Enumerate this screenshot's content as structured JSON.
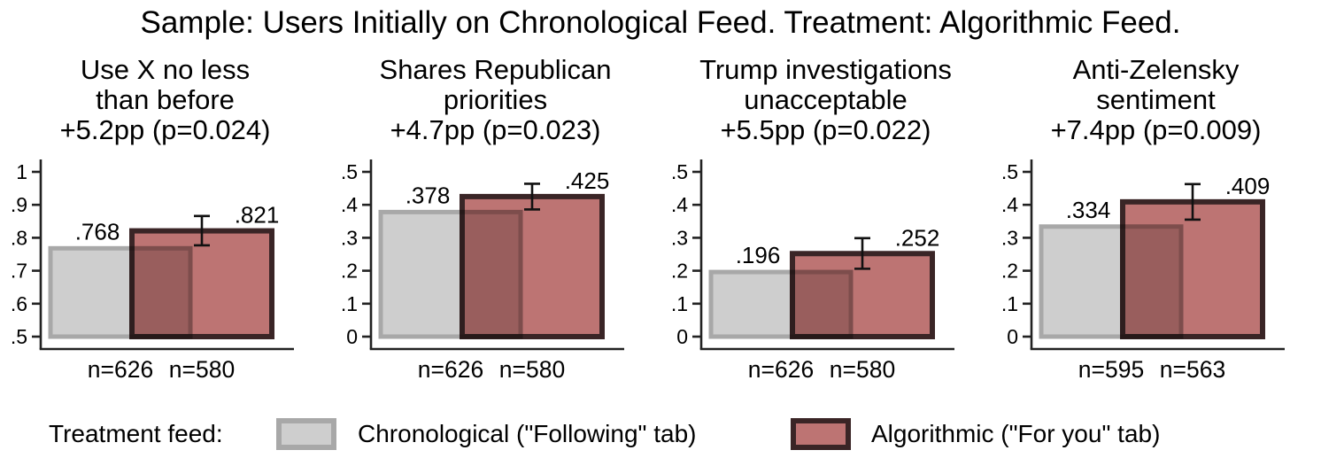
{
  "title": "Sample: Users Initially on Chronological Feed. Treatment: Algorithmic Feed.",
  "colors": {
    "background": "#ffffff",
    "axis": "#222222",
    "text": "#000000",
    "error_bar": "#111111",
    "bar_gray_fill": "#cecece",
    "bar_gray_border": "#a8a8a8",
    "bar_red_fill": "#bd7473",
    "bar_red_border": "#3a2526"
  },
  "legend": {
    "label": "Treatment feed:",
    "items": [
      {
        "name": "Chronological (\"Following\" tab)",
        "fill": "#cecece",
        "border": "#a8a8a8"
      },
      {
        "name": "Algorithmic (\"For you\" tab)",
        "fill": "#bd7473",
        "border": "#3a2526"
      }
    ]
  },
  "chart_data": [
    {
      "type": "bar",
      "title_lines": [
        "Use X no less",
        "than before",
        "+5.2pp (p=0.024)"
      ],
      "outcome": "Use X no less than before",
      "effect_pp": 5.2,
      "p_value": 0.024,
      "ylim": [
        0.5,
        1
      ],
      "yticks": [
        {
          "v": 1.0,
          "label": "1"
        },
        {
          "v": 0.9,
          "label": ".9"
        },
        {
          "v": 0.8,
          "label": ".8"
        },
        {
          "v": 0.7,
          "label": ".7"
        },
        {
          "v": 0.6,
          "label": ".6"
        },
        {
          "v": 0.5,
          "label": ".5"
        }
      ],
      "series": [
        {
          "name": "Chronological (\"Following\" tab)",
          "value": 0.768,
          "value_label": ".768",
          "n": 626,
          "n_label": "n=626"
        },
        {
          "name": "Algorithmic (\"For you\" tab)",
          "value": 0.821,
          "value_label": ".821",
          "n": 580,
          "n_label": "n=580",
          "ci": [
            0.777,
            0.866
          ]
        }
      ]
    },
    {
      "type": "bar",
      "title_lines": [
        "Shares Republican",
        "priorities",
        "+4.7pp (p=0.023)"
      ],
      "outcome": "Shares Republican priorities",
      "effect_pp": 4.7,
      "p_value": 0.023,
      "ylim": [
        0,
        0.5
      ],
      "yticks": [
        {
          "v": 0.5,
          "label": ".5"
        },
        {
          "v": 0.4,
          "label": ".4"
        },
        {
          "v": 0.3,
          "label": ".3"
        },
        {
          "v": 0.2,
          "label": ".2"
        },
        {
          "v": 0.1,
          "label": ".1"
        },
        {
          "v": 0.0,
          "label": "0"
        }
      ],
      "series": [
        {
          "name": "Chronological (\"Following\" tab)",
          "value": 0.378,
          "value_label": ".378",
          "n": 626,
          "n_label": "n=626"
        },
        {
          "name": "Algorithmic (\"For you\" tab)",
          "value": 0.425,
          "value_label": ".425",
          "n": 580,
          "n_label": "n=580",
          "ci": [
            0.386,
            0.464
          ]
        }
      ]
    },
    {
      "type": "bar",
      "title_lines": [
        "Trump investigations",
        "unacceptable",
        "+5.5pp (p=0.022)"
      ],
      "outcome": "Trump investigations unacceptable",
      "effect_pp": 5.5,
      "p_value": 0.022,
      "ylim": [
        0,
        0.5
      ],
      "yticks": [
        {
          "v": 0.5,
          "label": ".5"
        },
        {
          "v": 0.4,
          "label": ".4"
        },
        {
          "v": 0.3,
          "label": ".3"
        },
        {
          "v": 0.2,
          "label": ".2"
        },
        {
          "v": 0.1,
          "label": ".1"
        },
        {
          "v": 0.0,
          "label": "0"
        }
      ],
      "series": [
        {
          "name": "Chronological (\"Following\" tab)",
          "value": 0.196,
          "value_label": ".196",
          "n": 626,
          "n_label": "n=626"
        },
        {
          "name": "Algorithmic (\"For you\" tab)",
          "value": 0.252,
          "value_label": ".252",
          "n": 580,
          "n_label": "n=580",
          "ci": [
            0.206,
            0.299
          ]
        }
      ]
    },
    {
      "type": "bar",
      "title_lines": [
        "Anti-Zelensky",
        "sentiment",
        "+7.4pp (p=0.009)"
      ],
      "outcome": "Anti-Zelensky sentiment",
      "effect_pp": 7.4,
      "p_value": 0.009,
      "ylim": [
        0,
        0.5
      ],
      "yticks": [
        {
          "v": 0.5,
          "label": ".5"
        },
        {
          "v": 0.4,
          "label": ".4"
        },
        {
          "v": 0.3,
          "label": ".3"
        },
        {
          "v": 0.2,
          "label": ".2"
        },
        {
          "v": 0.1,
          "label": ".1"
        },
        {
          "v": 0.0,
          "label": "0"
        }
      ],
      "series": [
        {
          "name": "Chronological (\"Following\" tab)",
          "value": 0.334,
          "value_label": ".334",
          "n": 595,
          "n_label": "n=595"
        },
        {
          "name": "Algorithmic (\"For you\" tab)",
          "value": 0.409,
          "value_label": ".409",
          "n": 563,
          "n_label": "n=563",
          "ci": [
            0.355,
            0.463
          ]
        }
      ]
    }
  ]
}
